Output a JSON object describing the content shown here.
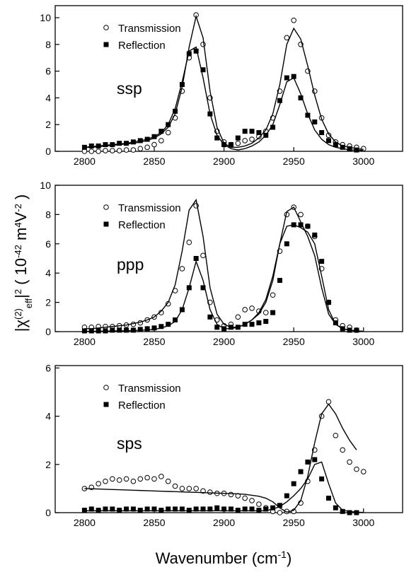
{
  "figure_labels": {
    "ylabel_parts": [
      [
        "|χ",
        "base"
      ],
      [
        "(2)",
        "super"
      ],
      [
        "eff",
        "sub"
      ],
      [
        "|",
        "base"
      ],
      [
        "2",
        "super"
      ],
      [
        " ( 10",
        "base"
      ],
      [
        "-42",
        "super"
      ],
      [
        " m",
        "base"
      ],
      [
        "4",
        "super"
      ],
      [
        "V",
        "base"
      ],
      [
        "-2",
        "super"
      ],
      [
        " )",
        "base"
      ]
    ],
    "xlabel_parts": [
      [
        "Wavenumber (cm",
        "base"
      ],
      [
        "-1",
        "super"
      ],
      [
        ")",
        "base"
      ]
    ]
  },
  "chart_data": [
    {
      "type": "line",
      "panel_label": "ssp",
      "legend": "upper left",
      "xlim": [
        2779,
        3028
      ],
      "ylim": [
        0,
        10.9
      ],
      "xticks": [
        2800,
        2850,
        2900,
        2950,
        3000
      ],
      "yticks": [
        0,
        2,
        4,
        6,
        8,
        10
      ],
      "x": [
        2800,
        2805,
        2810,
        2815,
        2820,
        2825,
        2830,
        2835,
        2840,
        2845,
        2850,
        2855,
        2860,
        2865,
        2870,
        2875,
        2880,
        2885,
        2890,
        2895,
        2900,
        2905,
        2910,
        2915,
        2920,
        2925,
        2930,
        2935,
        2940,
        2945,
        2950,
        2955,
        2960,
        2965,
        2970,
        2975,
        2980,
        2985,
        2990,
        2995,
        3000
      ],
      "series": [
        {
          "name": "Transmission",
          "style": "open-circle",
          "color": "#000000",
          "values": [
            0,
            0,
            0,
            0.05,
            0.05,
            0.05,
            0.1,
            0.1,
            0.2,
            0.3,
            0.5,
            0.8,
            1.4,
            2.5,
            4.5,
            7,
            10.2,
            8,
            4,
            1.5,
            0.7,
            0.5,
            0.6,
            0.8,
            0.9,
            1.1,
            1.5,
            2.5,
            4.5,
            8.5,
            9.8,
            8,
            6,
            4.5,
            2.5,
            1.2,
            0.7,
            0.5,
            0.4,
            0.3,
            0.2
          ]
        },
        {
          "name": "Reflection",
          "style": "filled-square",
          "color": "#000000",
          "values": [
            0.3,
            0.4,
            0.4,
            0.5,
            0.5,
            0.6,
            0.6,
            0.7,
            0.8,
            0.9,
            1.1,
            1.5,
            2,
            3,
            5,
            7.3,
            7.5,
            6.1,
            2.8,
            1.0,
            0.5,
            0.5,
            1.0,
            1.5,
            1.5,
            1.4,
            1.2,
            1.8,
            3.8,
            5.5,
            5.6,
            4,
            2.7,
            2.2,
            1.4,
            0.8,
            0.5,
            0.3,
            0.2,
            0.1,
            null
          ]
        },
        {
          "style": "line",
          "color": "#000000",
          "values": [
            0.3,
            0.3,
            0.35,
            0.4,
            0.45,
            0.5,
            0.55,
            0.6,
            0.7,
            0.8,
            1.0,
            1.3,
            1.8,
            2.8,
            4.8,
            7.8,
            10.1,
            8.5,
            4.5,
            1.8,
            0.6,
            0.3,
            0.3,
            0.4,
            0.6,
            1.0,
            1.6,
            2.8,
            5,
            8,
            9.2,
            8.4,
            6.4,
            4.2,
            2.4,
            1.3,
            0.7,
            0.4,
            0.3,
            0.2,
            0.15
          ]
        },
        {
          "style": "line",
          "color": "#000000",
          "values": [
            0.3,
            0.35,
            0.4,
            0.45,
            0.5,
            0.55,
            0.6,
            0.7,
            0.8,
            0.9,
            1.1,
            1.4,
            2,
            3.2,
            5.2,
            7.5,
            7.8,
            5.5,
            2.8,
            1.2,
            0.5,
            0.2,
            0.1,
            0.2,
            0.4,
            0.7,
            1.2,
            2.0,
            3.5,
            5.2,
            5.5,
            4.3,
            2.8,
            1.6,
            0.9,
            0.5,
            0.3,
            0.2,
            0.1,
            0.1,
            0.05
          ]
        }
      ]
    },
    {
      "type": "line",
      "panel_label": "ppp",
      "legend": "upper left",
      "xlim": [
        2779,
        3028
      ],
      "ylim": [
        0,
        10
      ],
      "xticks": [
        2800,
        2850,
        2900,
        2950,
        3000
      ],
      "yticks": [
        0,
        2,
        4,
        6,
        8,
        10
      ],
      "x": [
        2800,
        2805,
        2810,
        2815,
        2820,
        2825,
        2830,
        2835,
        2840,
        2845,
        2850,
        2855,
        2860,
        2865,
        2870,
        2875,
        2880,
        2885,
        2890,
        2895,
        2900,
        2905,
        2910,
        2915,
        2920,
        2925,
        2930,
        2935,
        2940,
        2945,
        2950,
        2955,
        2960,
        2965,
        2970,
        2975,
        2980,
        2985,
        2990,
        2995,
        3000
      ],
      "series": [
        {
          "name": "Transmission",
          "style": "open-circle",
          "color": "#000000",
          "values": [
            0.3,
            0.3,
            0.35,
            0.35,
            0.35,
            0.4,
            0.45,
            0.5,
            0.6,
            0.8,
            1.0,
            1.3,
            1.9,
            2.8,
            4.3,
            6.1,
            8.6,
            5.2,
            2,
            0.8,
            0.4,
            0.5,
            1.0,
            1.5,
            1.6,
            1.4,
            1.3,
            2.5,
            5.5,
            8,
            8.5,
            8.0,
            7.2,
            6.5,
            4.3,
            2.0,
            0.8,
            0.4,
            0.3,
            0.1,
            null
          ]
        },
        {
          "name": "Reflection",
          "style": "filled-square",
          "color": "#000000",
          "values": [
            0.05,
            0.05,
            0.05,
            0.05,
            0.1,
            0.1,
            0.1,
            0.1,
            0.15,
            0.2,
            0.25,
            0.35,
            0.5,
            0.8,
            1.5,
            3,
            5,
            3,
            1,
            0.3,
            0.2,
            0.3,
            0.3,
            0.5,
            0.5,
            0.6,
            0.7,
            1.3,
            3.5,
            6,
            7.3,
            7.3,
            7.2,
            6.6,
            4.8,
            2,
            0.6,
            0.2,
            0.1,
            0.1,
            null
          ]
        },
        {
          "style": "line",
          "color": "#000000",
          "values": [
            0.2,
            0.2,
            0.25,
            0.3,
            0.35,
            0.4,
            0.45,
            0.55,
            0.65,
            0.8,
            1.0,
            1.4,
            2.0,
            3.2,
            5.5,
            8.3,
            9.0,
            6.5,
            3,
            1.2,
            0.5,
            0.3,
            0.3,
            0.5,
            0.8,
            1.2,
            2,
            3.5,
            6,
            8.2,
            8.5,
            7.5,
            6.5,
            5.2,
            3,
            1.2,
            0.5,
            0.2,
            0.1,
            0.05,
            0.02
          ]
        },
        {
          "style": "line",
          "color": "#000000",
          "values": [
            0.02,
            0.02,
            0.03,
            0.03,
            0.05,
            0.05,
            0.06,
            0.08,
            0.1,
            0.12,
            0.15,
            0.25,
            0.4,
            0.7,
            1.5,
            3,
            4.8,
            3.5,
            1.5,
            0.5,
            0.2,
            0.2,
            0.3,
            0.5,
            0.8,
            1.3,
            2.2,
            3.8,
            6,
            7.2,
            7.3,
            7.1,
            6.8,
            6.0,
            3.8,
            1.5,
            0.5,
            0.2,
            0.1,
            0.05,
            0.02
          ]
        }
      ]
    },
    {
      "type": "line",
      "panel_label": "sps",
      "legend": "upper left",
      "xlim": [
        2779,
        3028
      ],
      "ylim": [
        0,
        6.1
      ],
      "xticks": [
        2800,
        2850,
        2900,
        2950,
        3000
      ],
      "yticks": [
        0,
        2,
        4,
        6
      ],
      "x": [
        2800,
        2805,
        2810,
        2815,
        2820,
        2825,
        2830,
        2835,
        2840,
        2845,
        2850,
        2855,
        2860,
        2865,
        2870,
        2875,
        2880,
        2885,
        2890,
        2895,
        2900,
        2905,
        2910,
        2915,
        2920,
        2925,
        2930,
        2935,
        2940,
        2945,
        2950,
        2955,
        2960,
        2965,
        2970,
        2975,
        2980,
        2985,
        2990,
        2995,
        3000
      ],
      "series": [
        {
          "name": "Transmission",
          "style": "open-circle",
          "color": "#000000",
          "values": [
            1.0,
            1.05,
            1.2,
            1.3,
            1.4,
            1.35,
            1.4,
            1.3,
            1.4,
            1.45,
            1.4,
            1.5,
            1.3,
            1.1,
            1.0,
            1.0,
            1.0,
            0.9,
            0.85,
            0.8,
            0.8,
            0.75,
            0.7,
            0.6,
            0.5,
            0.35,
            0.2,
            0.05,
            0.0,
            0.05,
            0.05,
            0.4,
            1.3,
            2.6,
            4.0,
            4.6,
            3.2,
            2.6,
            2.1,
            1.8,
            1.7
          ]
        },
        {
          "name": "Reflection",
          "style": "filled-square",
          "color": "#000000",
          "values": [
            0.1,
            0.15,
            0.1,
            0.15,
            0.15,
            0.1,
            0.15,
            0.15,
            0.1,
            0.15,
            0.15,
            0.1,
            0.15,
            0.15,
            0.15,
            0.1,
            0.15,
            0.15,
            0.15,
            0.2,
            0.15,
            0.15,
            0.1,
            0.15,
            0.15,
            0.1,
            0.15,
            0.2,
            0.3,
            0.7,
            1.2,
            1.7,
            2.1,
            2.2,
            1.4,
            0.6,
            0.2,
            0.05,
            0.0,
            0.0,
            null
          ]
        },
        {
          "style": "line",
          "color": "#000000",
          "values": [
            1.0,
            0.99,
            0.98,
            0.97,
            0.96,
            0.95,
            0.94,
            0.93,
            0.92,
            0.91,
            0.9,
            0.89,
            0.88,
            0.87,
            0.86,
            0.85,
            0.84,
            0.83,
            0.82,
            0.81,
            0.8,
            0.79,
            0.78,
            0.76,
            0.72,
            0.68,
            0.6,
            0.45,
            0.2,
            0.02,
            0.1,
            0.5,
            1.5,
            2.9,
            4.1,
            4.5,
            4.1,
            3.5,
            3.0,
            2.6,
            null
          ]
        },
        {
          "style": "line",
          "color": "#000000",
          "values": [
            0.08,
            0.08,
            0.08,
            0.08,
            0.08,
            0.08,
            0.08,
            0.08,
            0.08,
            0.08,
            0.08,
            0.08,
            0.08,
            0.08,
            0.08,
            0.08,
            0.08,
            0.08,
            0.08,
            0.08,
            0.08,
            0.08,
            0.08,
            0.08,
            0.08,
            0.08,
            0.08,
            0.15,
            0.25,
            0.45,
            0.7,
            1.0,
            1.4,
            2.0,
            2.1,
            1.2,
            0.4,
            0.1,
            0.05,
            0.02,
            0.01
          ]
        }
      ]
    }
  ]
}
